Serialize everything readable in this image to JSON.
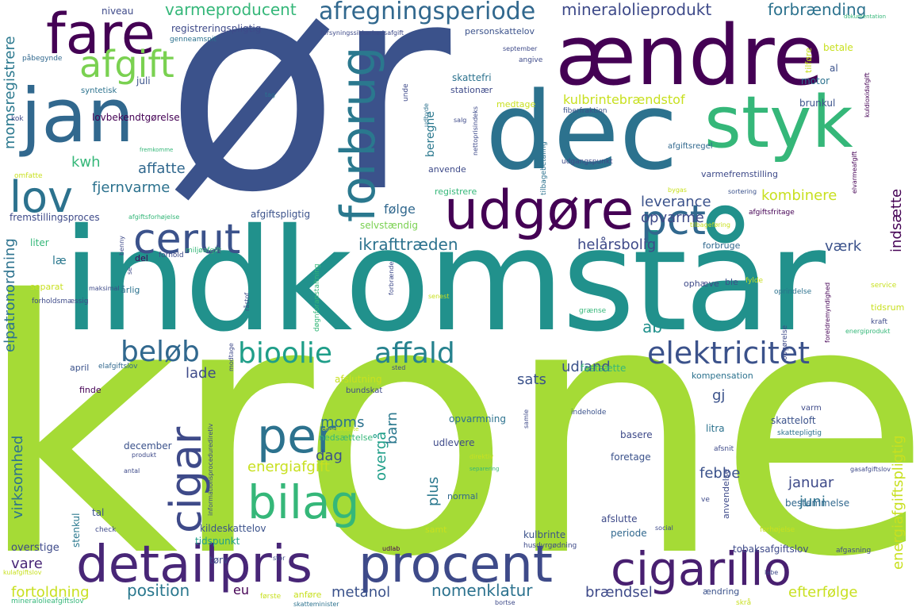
{
  "palette": {
    "lime": "#a5db36",
    "teal": "#21918c",
    "deepblue": "#3b528b",
    "purple": "#440154",
    "violet": "#472d7b",
    "green": "#35b779",
    "yellowgreen": "#c8e020",
    "steel": "#2c728e",
    "indigo": "#443983"
  },
  "words": [
    {
      "text": "krone",
      "color": "#a5db36",
      "rotated": false
    },
    {
      "text": "indkomstår",
      "color": "#21918c",
      "rotated": false
    },
    {
      "text": "ør",
      "color": "#3b528b",
      "rotated": false
    },
    {
      "text": "dec",
      "color": "#2c728e",
      "rotated": false
    },
    {
      "text": "ændre",
      "color": "#440154",
      "rotated": false
    },
    {
      "text": "styk",
      "color": "#35b779",
      "rotated": false
    },
    {
      "text": "jan",
      "color": "#31688e",
      "rotated": false
    },
    {
      "text": "fare",
      "color": "#440154",
      "rotated": false
    },
    {
      "text": "detailpris",
      "color": "#482677",
      "rotated": false
    },
    {
      "text": "procent",
      "color": "#3e4a89",
      "rotated": false
    },
    {
      "text": "cigarillo",
      "color": "#481f70",
      "rotated": false
    },
    {
      "text": "udgøre",
      "color": "#440154",
      "rotated": false
    },
    {
      "text": "forbrug",
      "color": "#2a788e",
      "rotated": true
    },
    {
      "text": "cerut",
      "color": "#3b528b",
      "rotated": false
    },
    {
      "text": "pct",
      "color": "#31688e",
      "rotated": false
    },
    {
      "text": "afgift",
      "color": "#7ad151",
      "rotated": false
    },
    {
      "text": "lov",
      "color": "#2c728e",
      "rotated": false
    },
    {
      "text": "cigar",
      "color": "#3e4a89",
      "rotated": true
    },
    {
      "text": "bilag",
      "color": "#35b779",
      "rotated": false
    },
    {
      "text": "per",
      "color": "#2c728e",
      "rotated": false
    },
    {
      "text": "beløb",
      "color": "#31688e",
      "rotated": false
    },
    {
      "text": "bioolie",
      "color": "#1f9e89",
      "rotated": false
    },
    {
      "text": "affald",
      "color": "#26828e",
      "rotated": false
    },
    {
      "text": "elektricitet",
      "color": "#3b528b",
      "rotated": false
    },
    {
      "text": "afregningsperiode",
      "color": "#31688e",
      "rotated": false
    },
    {
      "text": "varmeproducent",
      "color": "#35b779",
      "rotated": false
    },
    {
      "text": "mineralolieprodukt",
      "color": "#3e4a89",
      "rotated": false
    },
    {
      "text": "forbrænding",
      "color": "#2c728e",
      "rotated": false
    },
    {
      "text": "kulbrintebrændstof",
      "color": "#c8e020",
      "rotated": false
    },
    {
      "text": "momsregistrere",
      "color": "#2a788e",
      "rotated": true
    },
    {
      "text": "kwh",
      "color": "#35b779",
      "rotated": false
    },
    {
      "text": "affatte",
      "color": "#31688e",
      "rotated": false
    },
    {
      "text": "fjernvarme",
      "color": "#2c728e",
      "rotated": false
    },
    {
      "text": "kombinere",
      "color": "#c8e020",
      "rotated": false
    },
    {
      "text": "leverance",
      "color": "#3b528b",
      "rotated": false
    },
    {
      "text": "opvarme",
      "color": "#3e4a89",
      "rotated": false
    },
    {
      "text": "følge",
      "color": "#31688e",
      "rotated": false
    },
    {
      "text": "ikrafttræden",
      "color": "#2c728e",
      "rotated": false
    },
    {
      "text": "helårsbolig",
      "color": "#3e4a89",
      "rotated": false
    },
    {
      "text": "værk",
      "color": "#3b528b",
      "rotated": false
    },
    {
      "text": "indsætte",
      "color": "#440154",
      "rotated": true
    },
    {
      "text": "elpatronordning",
      "color": "#2c728e",
      "rotated": true
    },
    {
      "text": "energiafgiftspligtig",
      "color": "#c8e020",
      "rotated": true
    },
    {
      "text": "energiafgift",
      "color": "#c8e020",
      "rotated": false
    },
    {
      "text": "moms",
      "color": "#2c728e",
      "rotated": false
    },
    {
      "text": "dag",
      "color": "#3b528b",
      "rotated": false
    },
    {
      "text": "plus",
      "color": "#2a788e",
      "rotated": true
    },
    {
      "text": "overgå",
      "color": "#1f9e89",
      "rotated": true
    },
    {
      "text": "barn",
      "color": "#2a788e",
      "rotated": true
    },
    {
      "text": "febbe",
      "color": "#3b528b",
      "rotated": false
    },
    {
      "text": "januar",
      "color": "#3e4a89",
      "rotated": false
    },
    {
      "text": "juni",
      "color": "#2c728e",
      "rotated": false
    },
    {
      "text": "sats",
      "color": "#3b528b",
      "rotated": false
    },
    {
      "text": "gj",
      "color": "#3b528b",
      "rotated": false
    },
    {
      "text": "lade",
      "color": "#3e4a89",
      "rotated": false
    },
    {
      "text": "udland",
      "color": "#3b528b",
      "rotated": false
    },
    {
      "text": "ab",
      "color": "#21918c",
      "rotated": false
    },
    {
      "text": "virksomhed",
      "color": "#2c728e",
      "rotated": true
    },
    {
      "text": "position",
      "color": "#2a788e",
      "rotated": false
    },
    {
      "text": "eu",
      "color": "#440154",
      "rotated": false
    },
    {
      "text": "metanol",
      "color": "#3b528b",
      "rotated": false
    },
    {
      "text": "nomenklatur",
      "color": "#2c728e",
      "rotated": false
    },
    {
      "text": "brændsel",
      "color": "#3e4a89",
      "rotated": false
    },
    {
      "text": "efterfølge",
      "color": "#c8e020",
      "rotated": false
    },
    {
      "text": "fortoldning",
      "color": "#c8e020",
      "rotated": false
    },
    {
      "text": "vare",
      "color": "#482677",
      "rotated": false
    },
    {
      "text": "overstige",
      "color": "#3e4a89",
      "rotated": false
    },
    {
      "text": "tobaksafgiftslov",
      "color": "#3e4a89",
      "rotated": false
    },
    {
      "text": "kulbrinte",
      "color": "#3b528b",
      "rotated": false
    },
    {
      "text": "kildeskattelov",
      "color": "#3b528b",
      "rotated": false
    },
    {
      "text": "tidspunkt",
      "color": "#1f9e89",
      "rotated": false
    },
    {
      "text": "afslutte",
      "color": "#3e4a89",
      "rotated": false
    },
    {
      "text": "periode",
      "color": "#31688e",
      "rotated": false
    },
    {
      "text": "bestemmelse",
      "color": "#31688e",
      "rotated": false
    },
    {
      "text": "skatteloft",
      "color": "#3b528b",
      "rotated": false
    },
    {
      "text": "basere",
      "color": "#3e4a89",
      "rotated": false
    },
    {
      "text": "litra",
      "color": "#2c728e",
      "rotated": false
    },
    {
      "text": "foretage",
      "color": "#3b528b",
      "rotated": false
    },
    {
      "text": "december",
      "color": "#3b528b",
      "rotated": false
    },
    {
      "text": "udlevere",
      "color": "#3e4a89",
      "rotated": false
    },
    {
      "text": "opvarmning",
      "color": "#2c728e",
      "rotated": false
    },
    {
      "text": "nedsættelse",
      "color": "#35b779",
      "rotated": false
    },
    {
      "text": "stenkul",
      "color": "#2a788e",
      "rotated": true
    },
    {
      "text": "tal",
      "color": "#3b528b",
      "rotated": false
    },
    {
      "text": "tørv",
      "color": "#3e4a89",
      "rotated": false
    },
    {
      "text": "normal",
      "color": "#31688e",
      "rotated": false
    },
    {
      "text": "samt",
      "color": "#c8e020",
      "rotated": false
    },
    {
      "text": "april",
      "color": "#3b528b",
      "rotated": false
    },
    {
      "text": "finde",
      "color": "#440154",
      "rotated": false
    },
    {
      "text": "elafgiftslov",
      "color": "#31688e",
      "rotated": false
    },
    {
      "text": "fastsætte",
      "color": "#35b779",
      "rotated": false
    },
    {
      "text": "kompensation",
      "color": "#2c728e",
      "rotated": false
    },
    {
      "text": "afslutning",
      "color": "#c8e020",
      "rotated": false
    },
    {
      "text": "bundskat",
      "color": "#3e4a89",
      "rotated": false
    },
    {
      "text": "selvstændig",
      "color": "#7ad151",
      "rotated": false
    },
    {
      "text": "beregne",
      "color": "#2a788e",
      "rotated": true
    },
    {
      "text": "medtage",
      "color": "#c8e020",
      "rotated": false
    },
    {
      "text": "anvende",
      "color": "#3e4a89",
      "rotated": false
    },
    {
      "text": "registrere",
      "color": "#35b779",
      "rotated": false
    },
    {
      "text": "varmefremstilling",
      "color": "#3e4a89",
      "rotated": false
    },
    {
      "text": "afgiftspligtig",
      "color": "#3b528b",
      "rotated": false
    },
    {
      "text": "fremstillingsproces",
      "color": "#3e4a89",
      "rotated": false
    },
    {
      "text": "lovbekendtgørelse",
      "color": "#440154",
      "rotated": false
    },
    {
      "text": "juli",
      "color": "#3b528b",
      "rotated": false
    },
    {
      "text": "syntetisk",
      "color": "#2c728e",
      "rotated": false
    },
    {
      "text": "påbegynde",
      "color": "#31688e",
      "rotated": false
    },
    {
      "text": "genneamsnit",
      "color": "#2c728e",
      "rotated": false
    },
    {
      "text": "registreringspligtig",
      "color": "#3e4a89",
      "rotated": false
    },
    {
      "text": "niveau",
      "color": "#3e4a89",
      "rotated": false
    },
    {
      "text": "forsyningssikkerhedsafgift",
      "color": "#3e4a89",
      "rotated": false
    },
    {
      "text": "personskattelov",
      "color": "#3b528b",
      "rotated": false
    },
    {
      "text": "skattefri",
      "color": "#2c728e",
      "rotated": false
    },
    {
      "text": "stationær",
      "color": "#3e4a89",
      "rotated": false
    },
    {
      "text": "brunkul",
      "color": "#3b528b",
      "rotated": false
    },
    {
      "text": "motor",
      "color": "#2c728e",
      "rotated": false
    },
    {
      "text": "al",
      "color": "#3b528b",
      "rotated": false
    },
    {
      "text": "betale",
      "color": "#c8e020",
      "rotated": false
    },
    {
      "text": "tilføre",
      "color": "#c8e020",
      "rotated": true
    },
    {
      "text": "afgiftsregel",
      "color": "#31688e",
      "rotated": false
    },
    {
      "text": "udgangspunkt",
      "color": "#3e4a89",
      "rotated": false
    },
    {
      "text": "fiberfraktion",
      "color": "#3b528b",
      "rotated": false
    },
    {
      "text": "sortering",
      "color": "#3b528b",
      "rotated": false
    },
    {
      "text": "afgiftsfritage",
      "color": "#440154",
      "rotated": false
    },
    {
      "text": "tilbageføring",
      "color": "#c8e020",
      "rotated": false
    },
    {
      "text": "forbruge",
      "color": "#31688e",
      "rotated": false
    },
    {
      "text": "ophæve",
      "color": "#3e4a89",
      "rotated": false
    },
    {
      "text": "ble",
      "color": "#3b528b",
      "rotated": false
    },
    {
      "text": "fylde",
      "color": "#c8e020",
      "rotated": false
    },
    {
      "text": "oprindelse",
      "color": "#2c728e",
      "rotated": false
    },
    {
      "text": "service",
      "color": "#c8e020",
      "rotated": false
    },
    {
      "text": "tidsrum",
      "color": "#c8e020",
      "rotated": false
    },
    {
      "text": "kraft",
      "color": "#3e4a89",
      "rotated": false
    },
    {
      "text": "energiprodukt",
      "color": "#35b779",
      "rotated": false
    },
    {
      "text": "grænse",
      "color": "#35b779",
      "rotated": false
    },
    {
      "text": "senest",
      "color": "#c8e020",
      "rotated": false
    },
    {
      "text": "miljøafgift",
      "color": "#35b779",
      "rotated": false
    },
    {
      "text": "forhold",
      "color": "#3e4a89",
      "rotated": false
    },
    {
      "text": "del",
      "color": "#440154",
      "rotated": false
    },
    {
      "text": "liter",
      "color": "#35b779",
      "rotated": false
    },
    {
      "text": "læ",
      "color": "#2a788e",
      "rotated": false
    },
    {
      "text": "separat",
      "color": "#c8e020",
      "rotated": false
    },
    {
      "text": "maksimal",
      "color": "#3e4a89",
      "rotated": false
    },
    {
      "text": "årlig",
      "color": "#2c728e",
      "rotated": false
    },
    {
      "text": "forholdsmæssig",
      "color": "#3e4a89",
      "rotated": false
    },
    {
      "text": "omfatte",
      "color": "#c8e020",
      "rotated": false
    },
    {
      "text": "afgiftsforhøjelse",
      "color": "#35b779",
      "rotated": false
    },
    {
      "text": "fremkomme",
      "color": "#35b779",
      "rotated": false
    },
    {
      "text": "kok",
      "color": "#3e4a89",
      "rotated": false
    },
    {
      "text": "dokumentation",
      "color": "#35b779",
      "rotated": false
    },
    {
      "text": "september",
      "color": "#3e4a89",
      "rotated": false
    },
    {
      "text": "angive",
      "color": "#3e4a89",
      "rotated": false
    },
    {
      "text": "tag",
      "color": "#2c728e",
      "rotated": false
    },
    {
      "text": "salg",
      "color": "#3e4a89",
      "rotated": false
    },
    {
      "text": "bygas",
      "color": "#c8e020",
      "rotated": false
    },
    {
      "text": "indeholde",
      "color": "#3b528b",
      "rotated": false
    },
    {
      "text": "varm",
      "color": "#3e4a89",
      "rotated": false
    },
    {
      "text": "skattepligtig",
      "color": "#2c728e",
      "rotated": false
    },
    {
      "text": "afsnit",
      "color": "#3e4a89",
      "rotated": false
    },
    {
      "text": "gasafgiftslov",
      "color": "#3e4a89",
      "rotated": false
    },
    {
      "text": "ve",
      "color": "#3e4a89",
      "rotated": false
    },
    {
      "text": "forhøjelse",
      "color": "#c8e020",
      "rotated": false
    },
    {
      "text": "afgasning",
      "color": "#3e4a89",
      "rotated": false
    },
    {
      "text": "labe",
      "color": "#3e4a89",
      "rotated": false
    },
    {
      "text": "ændring",
      "color": "#3b528b",
      "rotated": false
    },
    {
      "text": "skrå",
      "color": "#c8e020",
      "rotated": false
    },
    {
      "text": "husdyrgødning",
      "color": "#3e4a89",
      "rotated": false
    },
    {
      "text": "udlab",
      "color": "#440154",
      "rotated": false
    },
    {
      "text": "stor",
      "color": "#3e4a89",
      "rotated": false
    },
    {
      "text": "anføre",
      "color": "#c8e020",
      "rotated": false
    },
    {
      "text": "første",
      "color": "#c8e020",
      "rotated": false
    },
    {
      "text": "skatteminister",
      "color": "#2c728e",
      "rotated": false
    },
    {
      "text": "bortse",
      "color": "#3e4a89",
      "rotated": false
    },
    {
      "text": "mineralolieafgiftslov",
      "color": "#35b779",
      "rotated": false
    },
    {
      "text": "kulafgiftslov",
      "color": "#c8e020",
      "rotated": false
    },
    {
      "text": "check",
      "color": "#3e4a89",
      "rotated": false
    },
    {
      "text": "produkt",
      "color": "#3e4a89",
      "rotated": false
    },
    {
      "text": "antal",
      "color": "#3e4a89",
      "rotated": false
    },
    {
      "text": "adskillelse",
      "color": "#3e4a89",
      "rotated": false
    },
    {
      "text": "engelbrechte",
      "color": "#c8e020",
      "rotated": false
    },
    {
      "text": "separering",
      "color": "#35b779",
      "rotated": false
    },
    {
      "text": "direktiv",
      "color": "#c8e020",
      "rotated": false
    },
    {
      "text": "social",
      "color": "#3e4a89",
      "rotated": false
    },
    {
      "text": "sted",
      "color": "#3e4a89",
      "rotated": false
    },
    {
      "text": "anvendelse",
      "color": "#3e4a89",
      "rotated": true
    },
    {
      "text": "informationsprocedurediretiv",
      "color": "#3e4a89",
      "rotated": true
    },
    {
      "text": "døgnforanstaltning",
      "color": "#35b779",
      "rotated": true
    },
    {
      "text": "nettoprisindeks",
      "color": "#3e4a89",
      "rotated": true
    },
    {
      "text": "tilbagebetaling",
      "color": "#2c728e",
      "rotated": true
    },
    {
      "text": "kuldioxidafgift",
      "color": "#440154",
      "rotated": true
    },
    {
      "text": "elvarmeafgift",
      "color": "#440154",
      "rotated": true
    },
    {
      "text": "foreldremyndighed",
      "color": "#440154",
      "rotated": true
    },
    {
      "text": "udbyde",
      "color": "#2c728e",
      "rotated": true
    },
    {
      "text": "unde",
      "color": "#3e4a89",
      "rotated": true
    },
    {
      "text": "råstof",
      "color": "#3e4a89",
      "rotated": true
    },
    {
      "text": "forbrænde",
      "color": "#3e4a89",
      "rotated": true
    },
    {
      "text": "modtage",
      "color": "#3e4a89",
      "rotated": true
    },
    {
      "text": "benny",
      "color": "#3e4a89",
      "rotated": true
    },
    {
      "text": "se",
      "color": "#3e4a89",
      "rotated": true
    },
    {
      "text": "samle",
      "color": "#3e4a89",
      "rotated": true
    },
    {
      "text": "opgørelse",
      "color": "#3e4a89",
      "rotated": true
    }
  ]
}
